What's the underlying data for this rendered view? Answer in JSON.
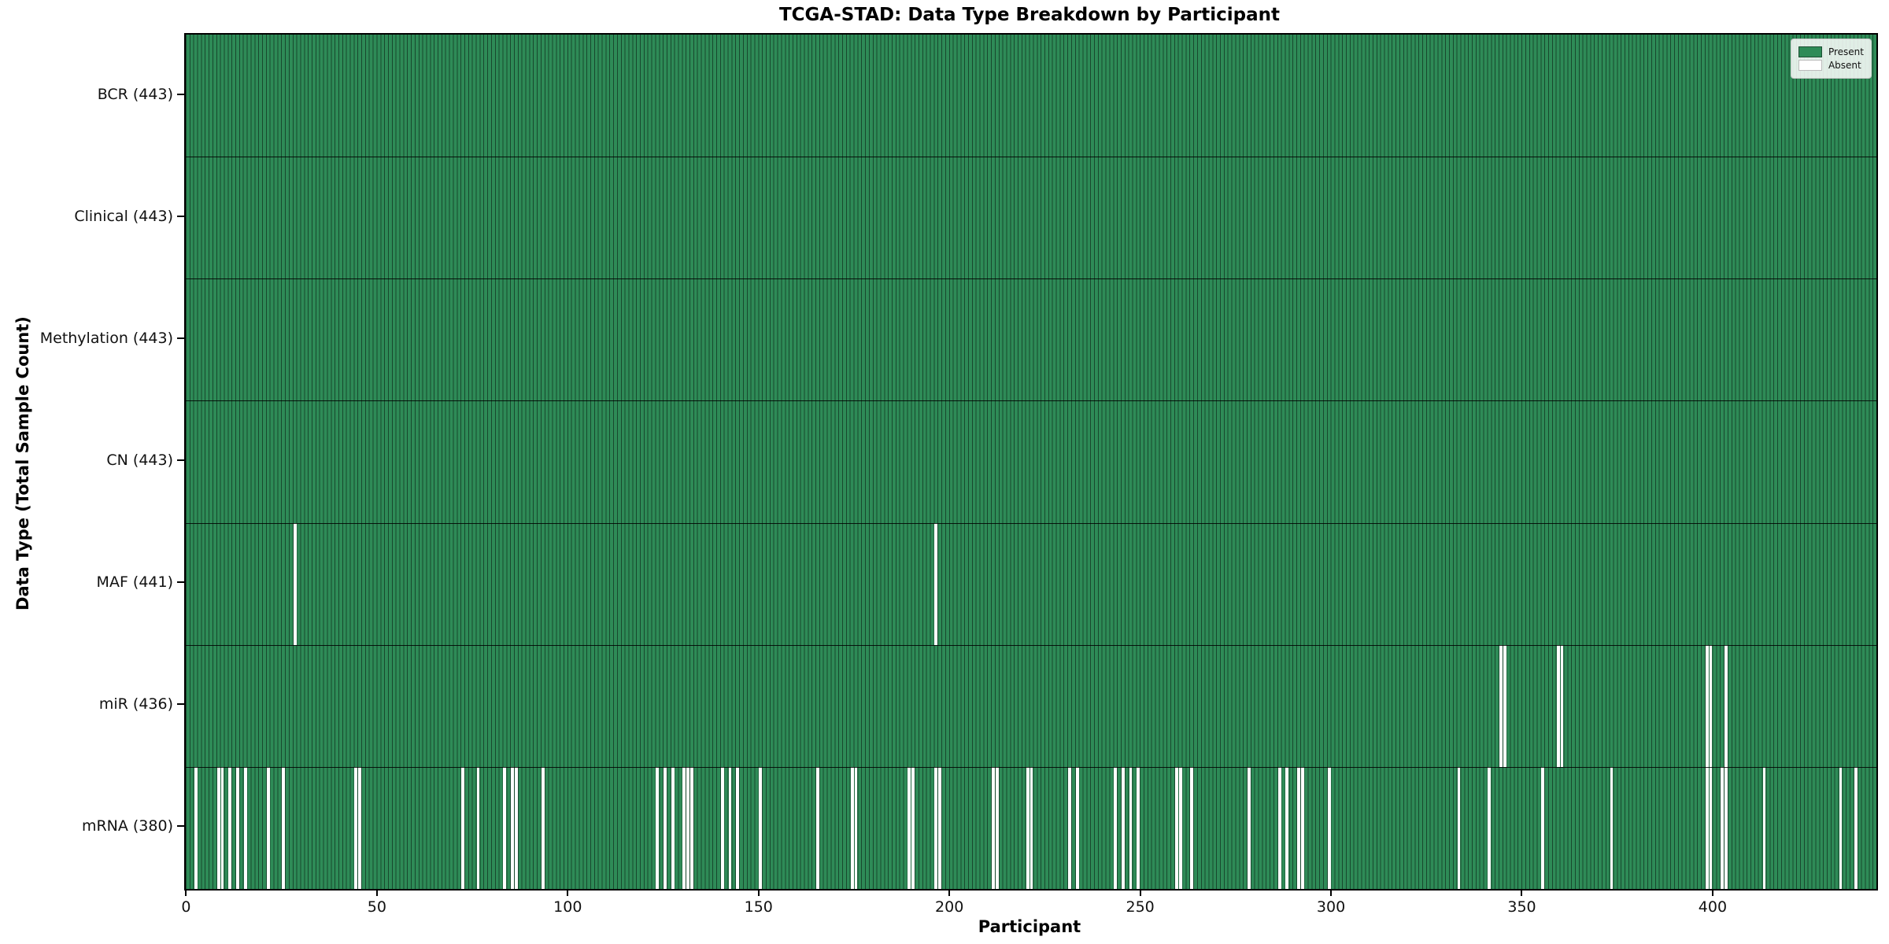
{
  "title": "TCGA-STAD: Data Type Breakdown by Participant",
  "xlabel": "Participant",
  "ylabel": "Data Type (Total Sample Count)",
  "legend": {
    "present_label": "Present",
    "absent_label": "Absent"
  },
  "colors": {
    "present": "#2e8b57",
    "absent": "#ffffff",
    "bar_edge": "#1c4f33",
    "frame": "#000000"
  },
  "chart_data": {
    "type": "heatmap",
    "title": "TCGA-STAD: Data Type Breakdown by Participant",
    "xlabel": "Participant",
    "ylabel": "Data Type (Total Sample Count)",
    "legend_entries": [
      "Present",
      "Absent"
    ],
    "legend_position": "upper right",
    "n_participants": 443,
    "x_ticks": [
      0,
      50,
      100,
      150,
      200,
      250,
      300,
      350,
      400
    ],
    "x_range": [
      -0.5,
      442.5
    ],
    "grid": false,
    "rows": [
      {
        "label": "BCR (443)",
        "name": "BCR",
        "total": 443,
        "absent": []
      },
      {
        "label": "Clinical (443)",
        "name": "Clinical",
        "total": 443,
        "absent": []
      },
      {
        "label": "Methylation (443)",
        "name": "Methylation",
        "total": 443,
        "absent": []
      },
      {
        "label": "CN (443)",
        "name": "CN",
        "total": 443,
        "absent": []
      },
      {
        "label": "MAF (441)",
        "name": "MAF",
        "total": 441,
        "absent": [
          28,
          196
        ]
      },
      {
        "label": "miR (436)",
        "name": "miR",
        "total": 436,
        "absent": [
          344,
          345,
          359,
          360,
          398,
          399,
          403
        ]
      },
      {
        "label": "mRNA (380)",
        "name": "mRNA",
        "total": 380,
        "absent": [
          2,
          8,
          9,
          11,
          13,
          15,
          21,
          25,
          44,
          45,
          72,
          76,
          83,
          85,
          86,
          93,
          123,
          125,
          127,
          130,
          131,
          132,
          140,
          142,
          144,
          150,
          165,
          174,
          175,
          189,
          190,
          196,
          197,
          211,
          212,
          220,
          221,
          231,
          233,
          243,
          245,
          247,
          249,
          259,
          260,
          263,
          278,
          286,
          288,
          291,
          292,
          299,
          333,
          341,
          355,
          373,
          398,
          399,
          402,
          403,
          413,
          433,
          437
        ]
      }
    ]
  }
}
